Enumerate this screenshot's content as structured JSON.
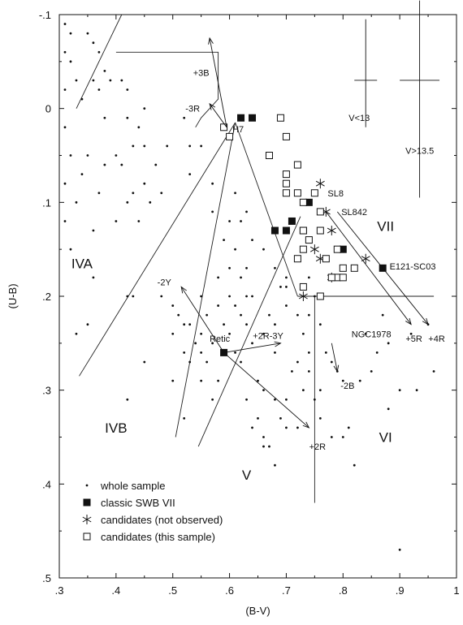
{
  "chart_data": {
    "type": "scatter",
    "xlabel": "(B-V)",
    "ylabel": "(U-B)",
    "xlim": [
      0.3,
      1.0
    ],
    "ylim": [
      0.5,
      -0.1
    ],
    "y_inverted": true,
    "grid": false,
    "legend_position": "bottom-left",
    "x_ticks": [
      {
        "value": 0.3,
        "label": ".3"
      },
      {
        "value": 0.4,
        "label": ".4"
      },
      {
        "value": 0.5,
        "label": ".5"
      },
      {
        "value": 0.6,
        "label": ".6"
      },
      {
        "value": 0.7,
        "label": ".7"
      },
      {
        "value": 0.8,
        "label": ".8"
      },
      {
        "value": 0.9,
        "label": ".9"
      },
      {
        "value": 1.0,
        "label": "1"
      }
    ],
    "y_ticks": [
      {
        "value": -0.1,
        "label": "-.1"
      },
      {
        "value": 0.0,
        "label": "0"
      },
      {
        "value": 0.1,
        "label": ".1"
      },
      {
        "value": 0.2,
        "label": ".2"
      },
      {
        "value": 0.3,
        "label": ".3"
      },
      {
        "value": 0.4,
        "label": ".4"
      },
      {
        "value": 0.5,
        "label": ".5"
      }
    ],
    "series": [
      {
        "name": "whole sample",
        "marker": "dot",
        "points": [
          [
            0.31,
            -0.09
          ],
          [
            0.32,
            -0.08
          ],
          [
            0.31,
            -0.06
          ],
          [
            0.35,
            -0.08
          ],
          [
            0.36,
            -0.07
          ],
          [
            0.37,
            -0.06
          ],
          [
            0.38,
            -0.04
          ],
          [
            0.32,
            -0.05
          ],
          [
            0.33,
            -0.03
          ],
          [
            0.31,
            -0.02
          ],
          [
            0.36,
            -0.03
          ],
          [
            0.34,
            -0.01
          ],
          [
            0.37,
            -0.02
          ],
          [
            0.39,
            -0.03
          ],
          [
            0.31,
            0.02
          ],
          [
            0.32,
            0.05
          ],
          [
            0.35,
            0.05
          ],
          [
            0.38,
            0.01
          ],
          [
            0.34,
            0.07
          ],
          [
            0.31,
            0.08
          ],
          [
            0.33,
            0.1
          ],
          [
            0.37,
            0.09
          ],
          [
            0.36,
            0.13
          ],
          [
            0.32,
            0.15
          ],
          [
            0.31,
            0.12
          ],
          [
            0.36,
            0.18
          ],
          [
            0.35,
            0.23
          ],
          [
            0.38,
            0.06
          ],
          [
            0.41,
            -0.03
          ],
          [
            0.42,
            0.01
          ],
          [
            0.44,
            0.02
          ],
          [
            0.45,
            0.0
          ],
          [
            0.43,
            0.04
          ],
          [
            0.41,
            0.06
          ],
          [
            0.45,
            0.08
          ],
          [
            0.47,
            0.06
          ],
          [
            0.49,
            0.04
          ],
          [
            0.46,
            0.1
          ],
          [
            0.44,
            0.12
          ],
          [
            0.48,
            0.09
          ],
          [
            0.42,
            0.1
          ],
          [
            0.4,
            0.05
          ],
          [
            0.52,
            0.01
          ],
          [
            0.53,
            0.04
          ],
          [
            0.55,
            0.04
          ],
          [
            0.53,
            0.07
          ],
          [
            0.43,
            0.09
          ],
          [
            0.42,
            -0.02
          ],
          [
            0.4,
            0.12
          ],
          [
            0.45,
            0.04
          ],
          [
            0.33,
            0.24
          ],
          [
            0.42,
            0.2
          ],
          [
            0.43,
            0.2
          ],
          [
            0.45,
            0.27
          ],
          [
            0.48,
            0.2
          ],
          [
            0.5,
            0.21
          ],
          [
            0.51,
            0.22
          ],
          [
            0.52,
            0.23
          ],
          [
            0.53,
            0.23
          ],
          [
            0.5,
            0.24
          ],
          [
            0.52,
            0.26
          ],
          [
            0.54,
            0.25
          ],
          [
            0.55,
            0.26
          ],
          [
            0.56,
            0.22
          ],
          [
            0.57,
            0.25
          ],
          [
            0.58,
            0.21
          ],
          [
            0.55,
            0.24
          ],
          [
            0.53,
            0.27
          ],
          [
            0.56,
            0.27
          ],
          [
            0.55,
            0.29
          ],
          [
            0.58,
            0.29
          ],
          [
            0.57,
            0.31
          ],
          [
            0.6,
            0.24
          ],
          [
            0.61,
            0.21
          ],
          [
            0.62,
            0.22
          ],
          [
            0.63,
            0.23
          ],
          [
            0.64,
            0.25
          ],
          [
            0.62,
            0.27
          ],
          [
            0.65,
            0.29
          ],
          [
            0.66,
            0.3
          ],
          [
            0.63,
            0.31
          ],
          [
            0.68,
            0.31
          ],
          [
            0.69,
            0.33
          ],
          [
            0.7,
            0.31
          ],
          [
            0.71,
            0.28
          ],
          [
            0.72,
            0.27
          ],
          [
            0.73,
            0.3
          ],
          [
            0.67,
            0.36
          ],
          [
            0.68,
            0.38
          ],
          [
            0.7,
            0.34
          ],
          [
            0.72,
            0.34
          ],
          [
            0.65,
            0.33
          ],
          [
            0.66,
            0.35
          ],
          [
            0.66,
            0.24
          ],
          [
            0.68,
            0.23
          ],
          [
            0.68,
            0.26
          ],
          [
            0.7,
            0.21
          ],
          [
            0.72,
            0.22
          ],
          [
            0.73,
            0.24
          ],
          [
            0.74,
            0.22
          ],
          [
            0.76,
            0.23
          ],
          [
            0.77,
            0.26
          ],
          [
            0.78,
            0.27
          ],
          [
            0.79,
            0.28
          ],
          [
            0.8,
            0.29
          ],
          [
            0.75,
            0.31
          ],
          [
            0.76,
            0.33
          ],
          [
            0.78,
            0.35
          ],
          [
            0.8,
            0.35
          ],
          [
            0.81,
            0.34
          ],
          [
            0.82,
            0.38
          ],
          [
            0.63,
            0.17
          ],
          [
            0.64,
            0.14
          ],
          [
            0.66,
            0.15
          ],
          [
            0.68,
            0.17
          ],
          [
            0.62,
            0.12
          ],
          [
            0.61,
            0.15
          ],
          [
            0.63,
            0.2
          ],
          [
            0.55,
            0.2
          ],
          [
            0.57,
            0.11
          ],
          [
            0.58,
            0.18
          ],
          [
            0.6,
            0.17
          ],
          [
            0.61,
            0.09
          ],
          [
            0.67,
            0.22
          ],
          [
            0.69,
            0.19
          ],
          [
            0.7,
            0.19
          ],
          [
            0.7,
            0.18
          ],
          [
            0.74,
            0.18
          ],
          [
            0.75,
            0.2
          ],
          [
            0.73,
            0.15
          ],
          [
            0.83,
            0.29
          ],
          [
            0.85,
            0.28
          ],
          [
            0.86,
            0.26
          ],
          [
            0.87,
            0.22
          ],
          [
            0.88,
            0.25
          ],
          [
            0.9,
            0.3
          ],
          [
            0.93,
            0.3
          ],
          [
            0.92,
            0.24
          ],
          [
            0.95,
            0.23
          ],
          [
            0.84,
            0.24
          ],
          [
            0.88,
            0.32
          ],
          [
            0.96,
            0.28
          ],
          [
            0.9,
            0.47
          ],
          [
            0.42,
            0.31
          ],
          [
            0.5,
            0.29
          ],
          [
            0.52,
            0.33
          ],
          [
            0.6,
            0.12
          ],
          [
            0.63,
            0.11
          ],
          [
            0.59,
            0.14
          ],
          [
            0.57,
            0.08
          ],
          [
            0.64,
            0.34
          ],
          [
            0.66,
            0.36
          ],
          [
            0.74,
            0.28
          ],
          [
            0.76,
            0.3
          ],
          [
            0.61,
            0.26
          ],
          [
            0.59,
            0.23
          ],
          [
            0.74,
            0.26
          ],
          [
            0.64,
            0.2
          ],
          [
            0.6,
            0.2
          ],
          [
            0.62,
            0.18
          ]
        ]
      },
      {
        "name": "classic SWB VII",
        "marker": "filled-square",
        "points": [
          [
            0.62,
            0.01
          ],
          [
            0.64,
            0.01
          ],
          [
            0.74,
            0.1
          ],
          [
            0.71,
            0.12
          ],
          [
            0.68,
            0.13
          ],
          [
            0.7,
            0.13
          ],
          [
            0.73,
            0.13
          ],
          [
            0.8,
            0.15
          ],
          [
            0.87,
            0.17
          ],
          [
            0.59,
            0.26
          ]
        ]
      },
      {
        "name": "candidates (not observed)",
        "marker": "asterisk",
        "points": [
          [
            0.76,
            0.08
          ],
          [
            0.77,
            0.11
          ],
          [
            0.78,
            0.13
          ],
          [
            0.75,
            0.15
          ],
          [
            0.76,
            0.16
          ],
          [
            0.78,
            0.18
          ],
          [
            0.84,
            0.16
          ],
          [
            0.73,
            0.2
          ]
        ]
      },
      {
        "name": "candidates (this sample)",
        "marker": "open-square",
        "points": [
          [
            0.69,
            0.01
          ],
          [
            0.59,
            0.02
          ],
          [
            0.6,
            0.03
          ],
          [
            0.7,
            0.03
          ],
          [
            0.67,
            0.05
          ],
          [
            0.72,
            0.06
          ],
          [
            0.7,
            0.07
          ],
          [
            0.7,
            0.08
          ],
          [
            0.7,
            0.09
          ],
          [
            0.72,
            0.09
          ],
          [
            0.73,
            0.1
          ],
          [
            0.75,
            0.09
          ],
          [
            0.76,
            0.11
          ],
          [
            0.76,
            0.13
          ],
          [
            0.73,
            0.13
          ],
          [
            0.74,
            0.14
          ],
          [
            0.73,
            0.15
          ],
          [
            0.79,
            0.15
          ],
          [
            0.77,
            0.16
          ],
          [
            0.72,
            0.16
          ],
          [
            0.8,
            0.17
          ],
          [
            0.82,
            0.17
          ],
          [
            0.79,
            0.18
          ],
          [
            0.78,
            0.18
          ],
          [
            0.8,
            0.18
          ],
          [
            0.76,
            0.2
          ],
          [
            0.73,
            0.19
          ]
        ]
      }
    ],
    "region_lines": [
      [
        [
          0.33,
          0.0
        ],
        [
          0.41,
          -0.1
        ]
      ],
      [
        [
          0.4,
          -0.06
        ],
        [
          0.58,
          -0.06
        ],
        [
          0.58,
          -0.01
        ],
        [
          0.55,
          0.01
        ],
        [
          0.54,
          0.02
        ]
      ],
      [
        [
          0.335,
          0.285
        ],
        [
          0.61,
          0.015
        ]
      ],
      [
        [
          0.61,
          0.015
        ],
        [
          0.72,
          0.2
        ]
      ],
      [
        [
          0.72,
          0.2
        ],
        [
          0.96,
          0.2
        ]
      ],
      [
        [
          0.75,
          0.2
        ],
        [
          0.75,
          0.42
        ]
      ],
      [
        [
          0.505,
          0.35
        ],
        [
          0.61,
          0.015
        ]
      ],
      [
        [
          0.545,
          0.36
        ],
        [
          0.725,
          0.115
        ]
      ]
    ],
    "region_labels": [
      {
        "text": "IVA",
        "x": 0.34,
        "y": 0.165
      },
      {
        "text": "IVB",
        "x": 0.4,
        "y": 0.34
      },
      {
        "text": "V",
        "x": 0.63,
        "y": 0.39
      },
      {
        "text": "VI",
        "x": 0.875,
        "y": 0.35
      },
      {
        "text": "VII",
        "x": 0.875,
        "y": 0.125
      }
    ],
    "arrows": [
      {
        "from": [
          0.59,
          0.26
        ],
        "to": [
          0.515,
          0.19
        ],
        "label": "-2Y",
        "label_x": 0.485,
        "label_y": 0.185
      },
      {
        "from": [
          0.59,
          0.26
        ],
        "to": [
          0.74,
          0.34
        ],
        "label": "+2R",
        "label_x": 0.755,
        "label_y": 0.36
      },
      {
        "from": [
          0.59,
          0.26
        ],
        "to": [
          0.69,
          0.25
        ],
        "label": "+2R-3Y",
        "label_x": 0.668,
        "label_y": 0.242
      },
      {
        "from": [
          0.595,
          0.02
        ],
        "to": [
          0.565,
          -0.005
        ],
        "label": "-3R",
        "label_x": 0.535,
        "label_y": 0.0
      },
      {
        "from": [
          0.595,
          0.02
        ],
        "to": [
          0.565,
          -0.075
        ],
        "label": "+3B",
        "label_x": 0.55,
        "label_y": -0.038
      },
      {
        "from": [
          0.77,
          0.11
        ],
        "to": [
          0.92,
          0.23
        ],
        "label": "+5R",
        "label_x": 0.925,
        "label_y": 0.245
      },
      {
        "from": [
          0.79,
          0.11
        ],
        "to": [
          0.95,
          0.23
        ],
        "label": "+4R",
        "label_x": 0.965,
        "label_y": 0.245
      },
      {
        "from": [
          0.78,
          0.25
        ],
        "to": [
          0.79,
          0.28
        ],
        "label": "-2B",
        "label_x": 0.808,
        "label_y": 0.295
      }
    ],
    "annotations": [
      {
        "text": "Retic",
        "x": 0.565,
        "y": 0.245,
        "anchor_x": 0.59,
        "anchor_y": 0.26
      },
      {
        "text": "NGC1978",
        "x": 0.815,
        "y": 0.24,
        "anchor_x": 0.78,
        "anchor_y": 0.25
      },
      {
        "text": "H7",
        "x": 0.605,
        "y": 0.022,
        "anchor_x": 0.6,
        "anchor_y": 0.02
      },
      {
        "text": "SL8",
        "x": 0.773,
        "y": 0.09,
        "anchor_x": 0.76,
        "anchor_y": 0.1
      },
      {
        "text": "SL842",
        "x": 0.797,
        "y": 0.11,
        "anchor_x": 0.79,
        "anchor_y": 0.11
      },
      {
        "text": "E121-SC03",
        "x": 0.882,
        "y": 0.168,
        "anchor_x": 0.87,
        "anchor_y": 0.17
      }
    ],
    "error_bars": [
      {
        "label": "V<13",
        "x": 0.84,
        "y": -0.03,
        "dx": 0.02,
        "dy_up": 0.065,
        "dy_down": 0.05,
        "label_x": 0.81,
        "label_y": 0.01
      },
      {
        "label": "V>13.5",
        "x": 0.935,
        "y": -0.03,
        "dx": 0.035,
        "dy_up": 0.085,
        "dy_down": 0.125,
        "label_x": 0.91,
        "label_y": 0.045
      }
    ]
  }
}
